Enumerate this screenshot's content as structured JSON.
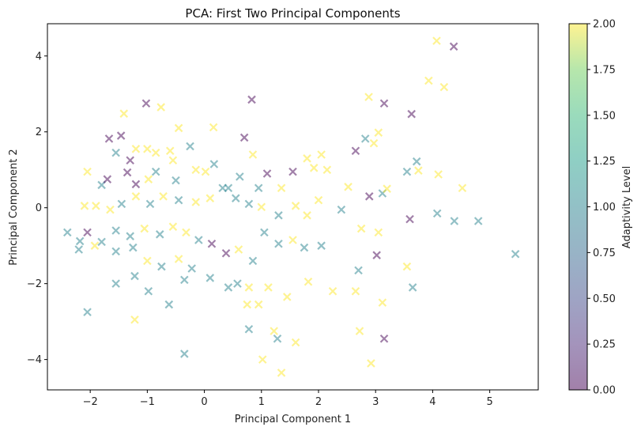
{
  "chart_data": {
    "type": "scatter",
    "title": "PCA: First Two Principal Components",
    "xlabel": "Principal Component 1",
    "ylabel": "Principal Component 2",
    "xlim": [
      -2.75,
      5.85
    ],
    "ylim": [
      -4.8,
      4.85
    ],
    "xticks": [
      -2,
      -1,
      0,
      1,
      2,
      3,
      4,
      5
    ],
    "yticks": [
      -4,
      -2,
      0,
      2,
      4
    ],
    "xtick_labels": [
      "−2",
      "−1",
      "0",
      "1",
      "2",
      "3",
      "4",
      "5"
    ],
    "ytick_labels": [
      "−4",
      "−2",
      "0",
      "2",
      "4"
    ],
    "grid": false,
    "marker": "x",
    "alpha": 0.5,
    "colormap": "viridis",
    "colorbar": {
      "label": "Adaptivity Level",
      "min": 0,
      "max": 2,
      "ticks": [
        0,
        0.25,
        0.5,
        0.75,
        1.0,
        1.25,
        1.5,
        1.75,
        2.0
      ],
      "tick_labels": [
        "0.00",
        "0.25",
        "0.50",
        "0.75",
        "1.00",
        "1.25",
        "1.50",
        "1.75",
        "2.00"
      ]
    },
    "points": [
      [
        4.07,
        4.4,
        2
      ],
      [
        4.37,
        4.25,
        0
      ],
      [
        3.93,
        3.35,
        2
      ],
      [
        4.2,
        3.18,
        2
      ],
      [
        2.88,
        2.92,
        2
      ],
      [
        3.15,
        2.75,
        0
      ],
      [
        3.63,
        2.47,
        0
      ],
      [
        -1.02,
        2.75,
        0
      ],
      [
        -0.76,
        2.65,
        2
      ],
      [
        -1.41,
        2.48,
        2
      ],
      [
        0.83,
        2.85,
        0
      ],
      [
        -0.45,
        2.1,
        2
      ],
      [
        0.16,
        2.12,
        2
      ],
      [
        0.7,
        1.85,
        0
      ],
      [
        -1.46,
        1.9,
        0
      ],
      [
        -1.67,
        1.82,
        0
      ],
      [
        -1.2,
        1.55,
        2
      ],
      [
        -1.55,
        1.45,
        1
      ],
      [
        -1.3,
        1.25,
        0
      ],
      [
        -1.0,
        1.55,
        2
      ],
      [
        -0.85,
        1.45,
        2
      ],
      [
        -0.6,
        1.5,
        2
      ],
      [
        -0.25,
        1.62,
        1
      ],
      [
        -0.55,
        1.25,
        2
      ],
      [
        0.17,
        1.15,
        1
      ],
      [
        0.85,
        1.4,
        2
      ],
      [
        1.8,
        1.3,
        2
      ],
      [
        2.05,
        1.4,
        2
      ],
      [
        2.65,
        1.5,
        0
      ],
      [
        2.97,
        1.7,
        2
      ],
      [
        3.05,
        1.98,
        2
      ],
      [
        2.82,
        1.82,
        1
      ],
      [
        3.72,
        1.22,
        1
      ],
      [
        -2.05,
        0.95,
        2
      ],
      [
        -1.8,
        0.6,
        1
      ],
      [
        -1.7,
        0.75,
        0
      ],
      [
        -1.35,
        0.93,
        0
      ],
      [
        -1.2,
        0.62,
        0
      ],
      [
        -0.98,
        0.75,
        2
      ],
      [
        -0.85,
        0.95,
        1
      ],
      [
        -0.5,
        0.72,
        1
      ],
      [
        -0.15,
        1.0,
        2
      ],
      [
        0.02,
        0.95,
        2
      ],
      [
        0.42,
        0.52,
        1
      ],
      [
        0.62,
        0.82,
        1
      ],
      [
        0.95,
        0.52,
        1
      ],
      [
        1.1,
        0.9,
        0
      ],
      [
        1.35,
        0.52,
        2
      ],
      [
        1.55,
        0.95,
        0
      ],
      [
        1.92,
        1.05,
        2
      ],
      [
        2.15,
        1.0,
        2
      ],
      [
        2.52,
        0.55,
        2
      ],
      [
        2.89,
        0.3,
        0
      ],
      [
        3.12,
        0.38,
        1
      ],
      [
        3.2,
        0.5,
        2
      ],
      [
        3.55,
        0.95,
        1
      ],
      [
        3.75,
        0.98,
        2
      ],
      [
        4.1,
        0.88,
        2
      ],
      [
        4.52,
        0.52,
        2
      ],
      [
        -2.1,
        0.05,
        2
      ],
      [
        -1.9,
        0.05,
        2
      ],
      [
        -1.65,
        -0.05,
        2
      ],
      [
        -1.45,
        0.1,
        1
      ],
      [
        -1.2,
        0.3,
        2
      ],
      [
        -0.95,
        0.1,
        1
      ],
      [
        -0.72,
        0.3,
        2
      ],
      [
        -0.45,
        0.2,
        1
      ],
      [
        -0.15,
        0.15,
        2
      ],
      [
        0.1,
        0.25,
        2
      ],
      [
        0.32,
        0.52,
        1
      ],
      [
        0.55,
        0.25,
        1
      ],
      [
        0.78,
        0.1,
        1
      ],
      [
        1.0,
        0.02,
        2
      ],
      [
        1.3,
        -0.2,
        1
      ],
      [
        1.6,
        0.05,
        2
      ],
      [
        1.8,
        -0.2,
        2
      ],
      [
        2.0,
        0.2,
        2
      ],
      [
        2.4,
        -0.05,
        1
      ],
      [
        2.75,
        -0.55,
        2
      ],
      [
        3.05,
        -0.65,
        2
      ],
      [
        3.6,
        -0.3,
        0
      ],
      [
        4.08,
        -0.15,
        1
      ],
      [
        4.38,
        -0.35,
        1
      ],
      [
        4.8,
        -0.35,
        1
      ],
      [
        -2.4,
        -0.65,
        1
      ],
      [
        -2.18,
        -0.88,
        1
      ],
      [
        -2.05,
        -0.65,
        0
      ],
      [
        -1.8,
        -0.9,
        1
      ],
      [
        -1.55,
        -0.6,
        1
      ],
      [
        -1.3,
        -0.75,
        1
      ],
      [
        -1.05,
        -0.55,
        2
      ],
      [
        -0.78,
        -0.7,
        1
      ],
      [
        -0.55,
        -0.5,
        2
      ],
      [
        -0.32,
        -0.65,
        2
      ],
      [
        -0.1,
        -0.85,
        1
      ],
      [
        0.13,
        -0.95,
        0
      ],
      [
        0.38,
        -1.2,
        0
      ],
      [
        0.6,
        -1.1,
        2
      ],
      [
        0.85,
        -1.4,
        1
      ],
      [
        1.05,
        -0.65,
        1
      ],
      [
        1.3,
        -0.95,
        1
      ],
      [
        1.55,
        -0.85,
        2
      ],
      [
        1.75,
        -1.05,
        1
      ],
      [
        2.05,
        -1.0,
        1
      ],
      [
        2.7,
        -1.65,
        1
      ],
      [
        3.02,
        -1.25,
        0
      ],
      [
        3.55,
        -1.55,
        2
      ],
      [
        3.65,
        -2.1,
        1
      ],
      [
        5.45,
        -1.22,
        1
      ],
      [
        -2.2,
        -1.1,
        1
      ],
      [
        -1.92,
        -1.0,
        2
      ],
      [
        -1.55,
        -1.15,
        1
      ],
      [
        -1.25,
        -1.05,
        1
      ],
      [
        -1.0,
        -1.4,
        2
      ],
      [
        -0.75,
        -1.55,
        1
      ],
      [
        -0.45,
        -1.35,
        2
      ],
      [
        -0.22,
        -1.6,
        1
      ],
      [
        0.1,
        -1.85,
        1
      ],
      [
        0.42,
        -2.1,
        1
      ],
      [
        0.78,
        -2.1,
        2
      ],
      [
        1.12,
        -2.1,
        2
      ],
      [
        1.45,
        -2.35,
        2
      ],
      [
        1.82,
        -1.95,
        2
      ],
      [
        2.25,
        -2.2,
        2
      ],
      [
        2.65,
        -2.2,
        2
      ],
      [
        3.12,
        -2.5,
        2
      ],
      [
        -2.05,
        -2.75,
        1
      ],
      [
        -1.55,
        -2.0,
        1
      ],
      [
        -1.22,
        -1.8,
        1
      ],
      [
        -0.98,
        -2.2,
        1
      ],
      [
        -0.62,
        -2.55,
        1
      ],
      [
        -0.35,
        -1.9,
        1
      ],
      [
        0.58,
        -2.0,
        1
      ],
      [
        0.75,
        -2.55,
        2
      ],
      [
        0.95,
        -2.55,
        2
      ],
      [
        1.22,
        -3.25,
        2
      ],
      [
        1.6,
        -3.55,
        2
      ],
      [
        -1.22,
        -2.95,
        2
      ],
      [
        0.78,
        -3.2,
        1
      ],
      [
        1.28,
        -3.45,
        1
      ],
      [
        2.72,
        -3.25,
        2
      ],
      [
        2.92,
        -4.1,
        2
      ],
      [
        3.15,
        -3.45,
        0
      ],
      [
        -0.35,
        -3.85,
        1
      ],
      [
        1.02,
        -4.0,
        2
      ],
      [
        1.35,
        -4.35,
        2
      ]
    ]
  }
}
